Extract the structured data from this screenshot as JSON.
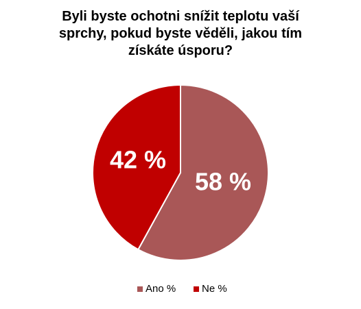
{
  "chart_data": {
    "type": "pie",
    "title": "Byli byste ochotni snížit teplotu vaší sprchy, pokud byste věděli, jakou tím získáte úsporu?",
    "categories": [
      "Ano %",
      "Ne %"
    ],
    "values": [
      58,
      42
    ],
    "value_labels": [
      "58 %",
      "42 %"
    ],
    "colors": [
      "#a95757",
      "#c00000"
    ],
    "legend": "bottom"
  }
}
